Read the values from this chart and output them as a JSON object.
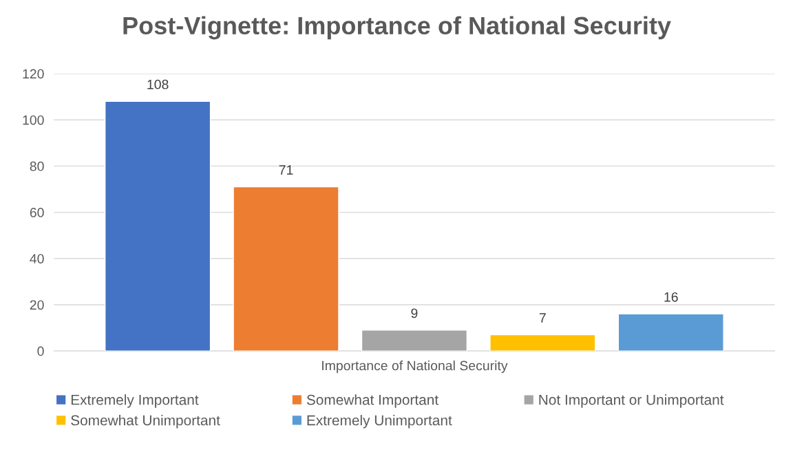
{
  "chart_data": {
    "type": "bar",
    "title": "Post-Vignette: Importance of National Security",
    "categories": [
      "Importance of National Security"
    ],
    "series": [
      {
        "name": "Extremely Important",
        "color": "#4472c4",
        "values": [
          108
        ]
      },
      {
        "name": "Somewhat Important",
        "color": "#ed7d31",
        "values": [
          71
        ]
      },
      {
        "name": "Not Important or Unimportant",
        "color": "#a5a5a5",
        "values": [
          9
        ]
      },
      {
        "name": "Somewhat Unimportant",
        "color": "#ffc000",
        "values": [
          7
        ]
      },
      {
        "name": "Extremely Unimportant",
        "color": "#5b9bd5",
        "values": [
          16
        ]
      }
    ],
    "ylim": [
      0,
      120
    ],
    "yticks": [
      0,
      20,
      40,
      60,
      80,
      100,
      120
    ],
    "grid": "y",
    "legend": "bottom",
    "data_labels": true
  }
}
